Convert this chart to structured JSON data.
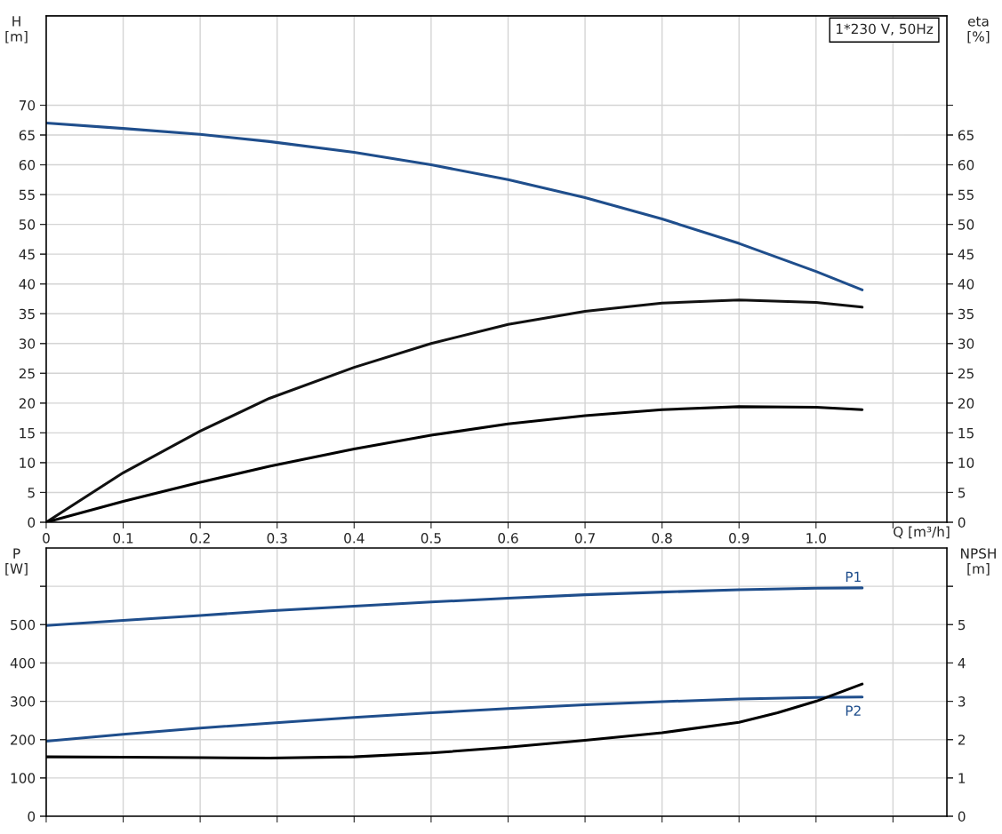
{
  "chart_data": [
    {
      "type": "line",
      "title": "1*230 V, 50Hz",
      "xlabel": "Q [m³/h]",
      "ylabel": "H\n[m]",
      "y2label": "eta\n[%]",
      "x": [
        0,
        0.1,
        0.2,
        0.29,
        0.4,
        0.5,
        0.6,
        0.7,
        0.8,
        0.9,
        1.0,
        1.06
      ],
      "xlim": [
        0,
        1.17
      ],
      "xticks": [
        0,
        0.1,
        0.2,
        0.3,
        0.4,
        0.5,
        0.6,
        0.7,
        0.8,
        0.9,
        {
          "value": 1.0,
          "label": "1.0"
        },
        {
          "value": 1.1,
          "label": null
        }
      ],
      "ylim": [
        0,
        85
      ],
      "yticks": [
        0,
        5,
        10,
        15,
        20,
        25,
        30,
        35,
        40,
        45,
        50,
        55,
        60,
        65,
        70
      ],
      "y2lim": [
        0,
        85
      ],
      "y2ticks": [
        0,
        5,
        10,
        15,
        20,
        25,
        30,
        35,
        40,
        45,
        50,
        55,
        60,
        65
      ],
      "grid": true,
      "legend": false,
      "series": [
        {
          "color": "#1f4e8c",
          "values": [
            67,
            66.1,
            65.1,
            63.9,
            62.1,
            60.0,
            57.5,
            54.5,
            50.9,
            46.8,
            42.1,
            39.0
          ]
        },
        {
          "color": "#111111",
          "axis": "y2",
          "values": [
            0,
            8.3,
            15.3,
            20.8,
            26.0,
            30.0,
            33.2,
            35.4,
            36.8,
            37.3,
            36.9,
            36.1
          ]
        },
        {
          "color": "#000000",
          "axis": "y2",
          "values": [
            0,
            3.5,
            6.7,
            9.4,
            12.3,
            14.6,
            16.5,
            17.9,
            18.9,
            19.4,
            19.3,
            18.9
          ]
        }
      ]
    },
    {
      "type": "line",
      "ylabel": "P\n[W]",
      "y2label": "NPSH\n[m]",
      "x": [
        0,
        0.1,
        0.2,
        0.29,
        0.4,
        0.5,
        0.6,
        0.7,
        0.8,
        0.9,
        1.0,
        1.06
      ],
      "xlim": [
        0,
        1.17
      ],
      "xticks": [
        0,
        0.1,
        0.2,
        0.3,
        0.4,
        0.5,
        0.6,
        0.7,
        0.8,
        0.9,
        1.0,
        1.1
      ],
      "tick_labels": "y",
      "ylim": [
        0,
        700
      ],
      "yticks": [
        0,
        100,
        200,
        300,
        400,
        500,
        {
          "value": 600,
          "label": null
        }
      ],
      "y2lim": [
        0,
        7
      ],
      "y2ticks": [
        0,
        1,
        2,
        3,
        4,
        5,
        {
          "value": 6,
          "label": null
        }
      ],
      "grid": true,
      "legend": false,
      "series": [
        {
          "name": "P1",
          "color": "#1f4e8c",
          "values": [
            498,
            511,
            524,
            536,
            548,
            559,
            569,
            578,
            585,
            591,
            595,
            596
          ]
        },
        {
          "name": "P2",
          "color": "#1f4e8c",
          "values": [
            196,
            214,
            230,
            243,
            258,
            270,
            281,
            291,
            299,
            306,
            310,
            311
          ]
        },
        {
          "color": "#000000",
          "axis": "y2",
          "x": [
            0,
            0.1,
            0.2,
            0.29,
            0.4,
            0.5,
            0.6,
            0.7,
            0.8,
            0.9,
            0.95,
            1.0,
            1.06
          ],
          "values": [
            1.55,
            1.54,
            1.53,
            1.52,
            1.55,
            1.65,
            1.8,
            1.98,
            2.18,
            2.45,
            2.7,
            3.0,
            3.45
          ]
        }
      ]
    }
  ]
}
